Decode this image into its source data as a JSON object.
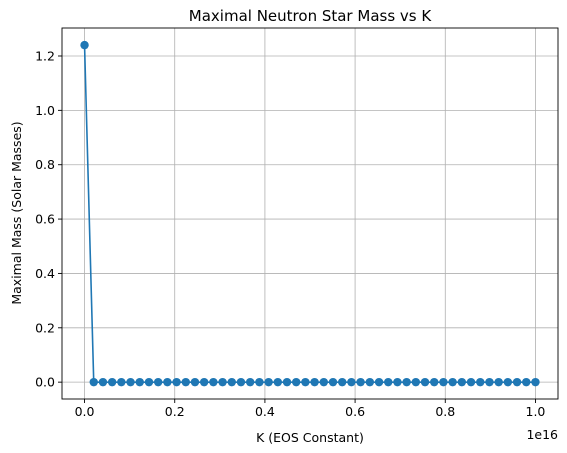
{
  "chart_data": {
    "type": "line",
    "title": "Maximal Neutron Star Mass vs K",
    "xlabel": "K (EOS Constant)",
    "ylabel": "Maximal Mass (Solar Masses)",
    "x_offset_label": "1e16",
    "xlim": [
      -0.05,
      1.05
    ],
    "ylim": [
      -0.062,
      1.303
    ],
    "x_ticks": [
      0.0,
      0.2,
      0.4,
      0.6,
      0.8,
      1.0
    ],
    "x_tick_labels": [
      "0.0",
      "0.2",
      "0.4",
      "0.6",
      "0.8",
      "1.0"
    ],
    "y_ticks": [
      0.0,
      0.2,
      0.4,
      0.6,
      0.8,
      1.0,
      1.2
    ],
    "y_tick_labels": [
      "0.0",
      "0.2",
      "0.4",
      "0.6",
      "0.8",
      "1.0",
      "1.2"
    ],
    "grid": true,
    "color": "#1f77b4",
    "series": [
      {
        "x": [
          0.0,
          0.0204,
          0.0408,
          0.0612,
          0.0816,
          0.102,
          0.1224,
          0.1429,
          0.1633,
          0.1837,
          0.2041,
          0.2245,
          0.2449,
          0.2653,
          0.2857,
          0.3061,
          0.3265,
          0.3469,
          0.3673,
          0.3878,
          0.4082,
          0.4286,
          0.449,
          0.4694,
          0.4898,
          0.5102,
          0.5306,
          0.551,
          0.5714,
          0.5918,
          0.6122,
          0.6327,
          0.6531,
          0.6735,
          0.6939,
          0.7143,
          0.7347,
          0.7551,
          0.7755,
          0.7959,
          0.8163,
          0.8367,
          0.8571,
          0.8776,
          0.898,
          0.9184,
          0.9388,
          0.9592,
          0.9796,
          1.0
        ],
        "values": [
          1.24,
          0,
          0,
          0,
          0,
          0,
          0,
          0,
          0,
          0,
          0,
          0,
          0,
          0,
          0,
          0,
          0,
          0,
          0,
          0,
          0,
          0,
          0,
          0,
          0,
          0,
          0,
          0,
          0,
          0,
          0,
          0,
          0,
          0,
          0,
          0,
          0,
          0,
          0,
          0,
          0,
          0,
          0,
          0,
          0,
          0,
          0,
          0,
          0,
          0
        ]
      }
    ]
  }
}
